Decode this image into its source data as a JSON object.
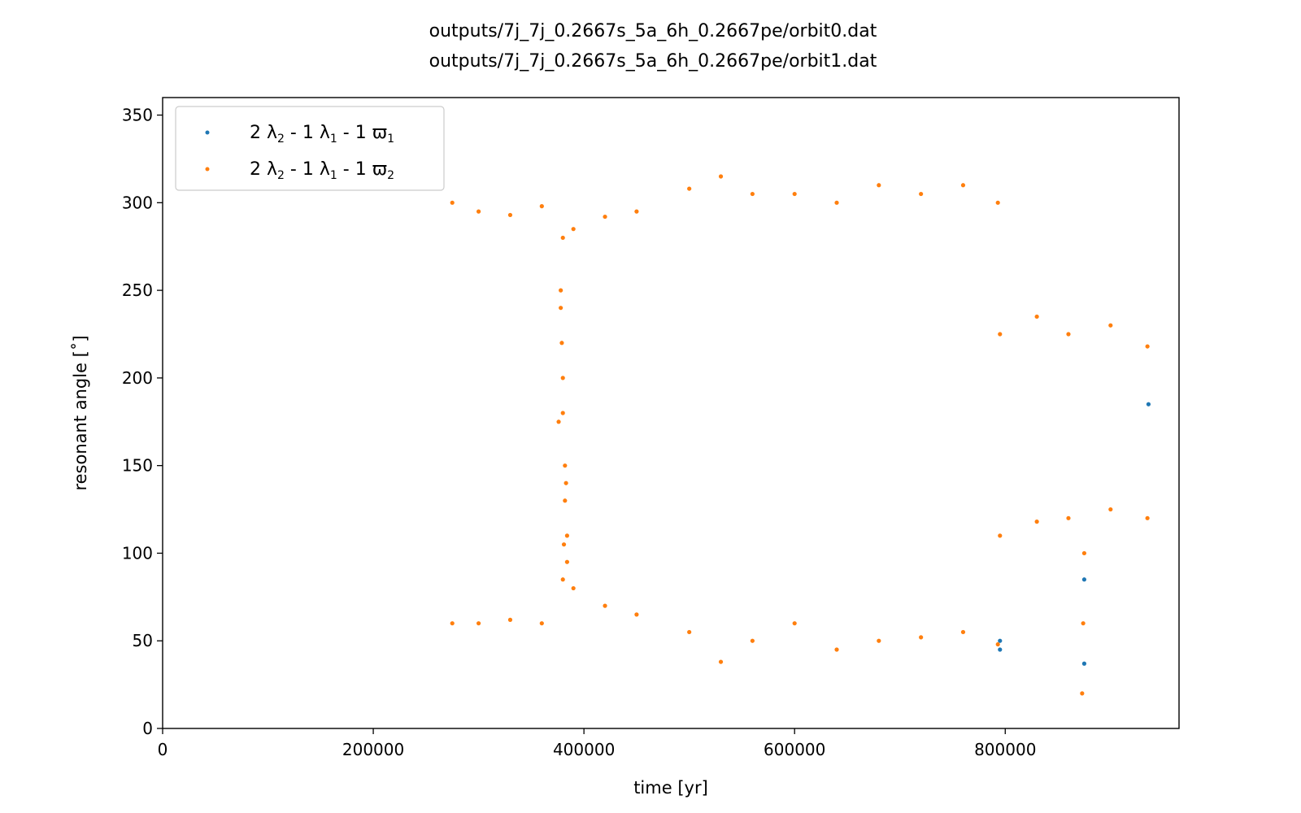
{
  "chart_data": {
    "type": "scatter",
    "title_lines": [
      "outputs/7j_7j_0.2667s_5a_6h_0.2667pe/orbit0.dat",
      "outputs/7j_7j_0.2667s_5a_6h_0.2667pe/orbit1.dat"
    ],
    "xlabel": "time [yr]",
    "ylabel": "resonant angle [˚]",
    "xlim": [
      0,
      965000
    ],
    "ylim": [
      0,
      360
    ],
    "xticks": [
      0,
      200000,
      400000,
      600000,
      800000
    ],
    "xtick_labels": [
      "0",
      "200000",
      "400000",
      "600000",
      "800000"
    ],
    "yticks": [
      0,
      50,
      100,
      150,
      200,
      250,
      300,
      350
    ],
    "ytick_labels": [
      "0",
      "50",
      "100",
      "150",
      "200",
      "250",
      "300",
      "350"
    ],
    "legend_position": "upper-left",
    "grid": false,
    "colors": {
      "series1": "#1f77b4",
      "series2": "#ff7f0e"
    },
    "series": [
      {
        "name": "2 λ2 - 1 λ1 - 1 ϖ1",
        "legend_parts": [
          "2 λ",
          "2",
          " - 1 λ",
          "1",
          " - 1 ϖ",
          "1"
        ],
        "color": "#1f77b4",
        "x": [
          795000,
          795000,
          875000,
          875000,
          936000
        ],
        "y": [
          50,
          45,
          85,
          37,
          185
        ]
      },
      {
        "name": "2 λ2 - 1 λ1 - 1 ϖ2",
        "legend_parts": [
          "2 λ",
          "2",
          " - 1 λ",
          "1",
          " - 1 ϖ",
          "2"
        ],
        "color": "#ff7f0e",
        "x": [
          275000,
          300000,
          330000,
          360000,
          380000,
          390000,
          420000,
          450000,
          500000,
          530000,
          560000,
          600000,
          640000,
          680000,
          720000,
          760000,
          793000,
          275000,
          300000,
          330000,
          360000,
          380000,
          390000,
          420000,
          450000,
          500000,
          530000,
          560000,
          600000,
          640000,
          680000,
          720000,
          760000,
          793000,
          378000,
          380000,
          382000,
          384000,
          378000,
          380000,
          382000,
          384000,
          376000,
          383000,
          379000,
          381000,
          795000,
          830000,
          860000,
          900000,
          935000,
          795000,
          830000,
          860000,
          900000,
          935000,
          875000,
          874000,
          873000
        ],
        "y": [
          300,
          295,
          293,
          298,
          280,
          285,
          292,
          295,
          308,
          315,
          305,
          305,
          300,
          310,
          305,
          310,
          300,
          60,
          60,
          62,
          60,
          85,
          80,
          70,
          65,
          55,
          38,
          50,
          60,
          45,
          50,
          52,
          55,
          48,
          250,
          200,
          150,
          110,
          240,
          180,
          130,
          95,
          175,
          140,
          220,
          105,
          225,
          235,
          225,
          230,
          218,
          110,
          118,
          120,
          125,
          120,
          100,
          60,
          20
        ]
      }
    ]
  }
}
